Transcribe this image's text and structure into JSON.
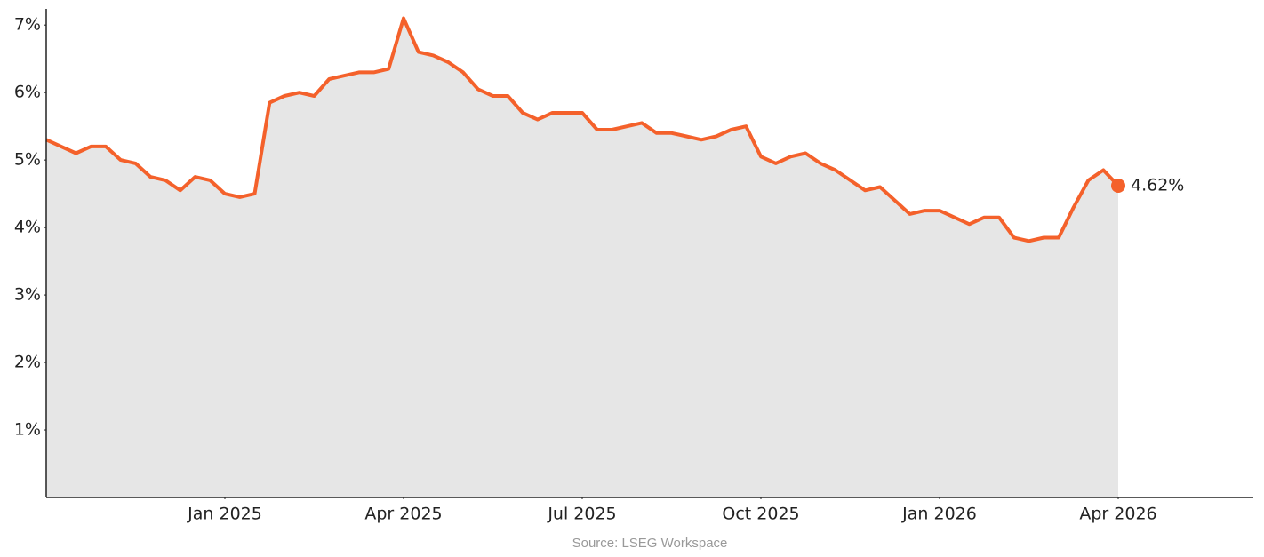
{
  "chart_data": {
    "type": "line",
    "source": "Source: LSEG Workspace",
    "x": [
      "2024-10",
      "2024-10",
      "2024-10",
      "2024-10",
      "2024-11",
      "2024-11",
      "2024-11",
      "2024-11",
      "2024-12",
      "2024-12",
      "2024-12",
      "2024-12",
      "2025-01",
      "2025-01",
      "2025-01",
      "2025-01",
      "2025-02",
      "2025-02",
      "2025-02",
      "2025-02",
      "2025-03",
      "2025-03",
      "2025-03",
      "2025-03",
      "2025-04",
      "2025-04",
      "2025-04",
      "2025-04",
      "2025-05",
      "2025-05",
      "2025-05",
      "2025-05",
      "2025-06",
      "2025-06",
      "2025-06",
      "2025-06",
      "2025-07",
      "2025-07",
      "2025-07",
      "2025-07",
      "2025-08",
      "2025-08",
      "2025-08",
      "2025-08",
      "2025-09",
      "2025-09",
      "2025-09",
      "2025-09",
      "2025-10",
      "2025-10",
      "2025-10",
      "2025-10",
      "2025-11",
      "2025-11",
      "2025-11",
      "2025-11",
      "2025-12",
      "2025-12",
      "2025-12",
      "2025-12",
      "2026-01",
      "2026-01",
      "2026-01",
      "2026-01",
      "2026-02",
      "2026-02",
      "2026-02",
      "2026-02",
      "2026-03",
      "2026-03",
      "2026-03",
      "2026-03",
      "2026-04"
    ],
    "series": [
      {
        "color": "#f4612b",
        "values": [
          5.3,
          5.2,
          5.1,
          5.2,
          5.2,
          5.0,
          4.95,
          4.75,
          4.7,
          4.55,
          4.75,
          4.7,
          4.5,
          4.45,
          4.5,
          5.85,
          5.95,
          6.0,
          5.95,
          6.2,
          6.25,
          6.3,
          6.3,
          6.35,
          7.1,
          6.6,
          6.55,
          6.45,
          6.3,
          6.05,
          5.95,
          5.95,
          5.7,
          5.6,
          5.7,
          5.7,
          5.7,
          5.45,
          5.45,
          5.5,
          5.55,
          5.4,
          5.4,
          5.35,
          5.3,
          5.35,
          5.45,
          5.5,
          5.05,
          4.95,
          5.05,
          5.1,
          4.95,
          4.85,
          4.7,
          4.55,
          4.6,
          4.4,
          4.2,
          4.25,
          4.25,
          4.15,
          4.05,
          4.15,
          4.15,
          3.85,
          3.8,
          3.85,
          3.85,
          4.3,
          4.7,
          4.85,
          4.62
        ]
      }
    ],
    "last_label": "4.62%",
    "fill": "#e6e6e6",
    "xlim": [
      "2024-10",
      "2026-06"
    ],
    "xticks": [
      {
        "value": "2025-01",
        "label": "Jan 2025"
      },
      {
        "value": "2025-04",
        "label": "Apr 2025"
      },
      {
        "value": "2025-07",
        "label": "Jul 2025"
      },
      {
        "value": "2025-10",
        "label": "Oct 2025"
      },
      {
        "value": "2026-01",
        "label": "Jan 2026"
      },
      {
        "value": "2026-04",
        "label": "Apr 2026"
      }
    ],
    "ylim": [
      0,
      7.2
    ],
    "yticks": [
      {
        "value": 1,
        "label": "1%"
      },
      {
        "value": 2,
        "label": "2%"
      },
      {
        "value": 3,
        "label": "3%"
      },
      {
        "value": 4,
        "label": "4%"
      },
      {
        "value": 5,
        "label": "5%"
      },
      {
        "value": 6,
        "label": "6%"
      },
      {
        "value": 7,
        "label": "7%"
      }
    ]
  }
}
